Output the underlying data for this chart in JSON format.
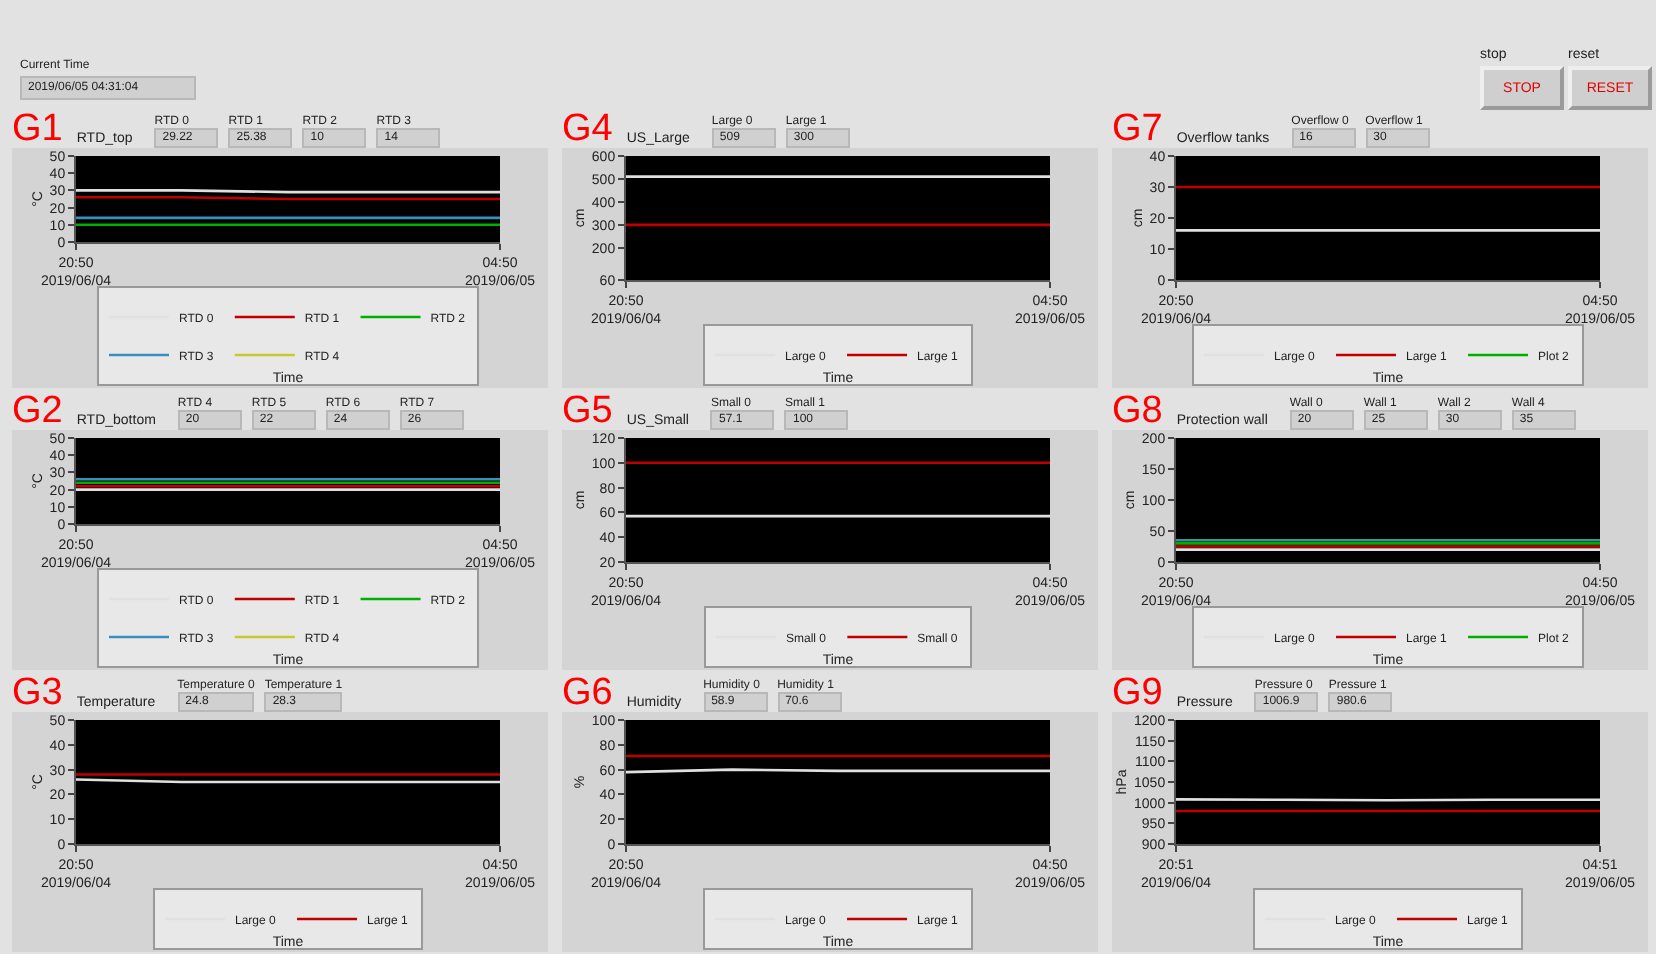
{
  "chart_data": [
    {
      "type": "other",
      "annotations": [
        "Current Time",
        "2019/06/05 04:31:04",
        "stop",
        "STOP",
        "reset",
        "RESET"
      ]
    },
    {
      "type": "line",
      "title": "RTD_top",
      "xlabel": "Time",
      "ylabel": "°C",
      "legend": "bottom",
      "annotations": [
        "G1",
        "RTD 0",
        "29.22",
        "RTD 1",
        "25.38",
        "RTD 2",
        "10",
        "RTD 3",
        "14"
      ],
      "x": [
        "2019-06-04T20:50",
        "2019-06-04T22:50",
        "2019-06-05T00:50",
        "2019-06-05T02:50",
        "2019-06-05T04:50"
      ],
      "xlim": [
        "2019-06-04T20:50",
        "2019-06-05T04:50"
      ],
      "xticks": [
        {
          "value": "2019-06-04T20:50",
          "label": "20:50\n2019/06/04"
        },
        {
          "value": "2019-06-05T04:50",
          "label": "04:50\n2019/06/05"
        }
      ],
      "ylim": [
        0,
        50
      ],
      "yticks": [
        0,
        10,
        20,
        30,
        40,
        50
      ],
      "series": [
        {
          "name": "RTD 0",
          "color": "#e0e0e0",
          "values": [
            30,
            30,
            29,
            29,
            29
          ]
        },
        {
          "name": "RTD 1",
          "color": "#c00000",
          "values": [
            26,
            26,
            25,
            25,
            25
          ]
        },
        {
          "name": "RTD 2",
          "color": "#00b000",
          "values": [
            10,
            10,
            10,
            10,
            10
          ]
        },
        {
          "name": "RTD 3",
          "color": "#3a8fc0",
          "values": [
            14,
            14,
            14,
            14,
            14
          ]
        },
        {
          "name": "RTD 4",
          "color": "#c8c832",
          "values": [
            null,
            null,
            null,
            null,
            null
          ]
        }
      ]
    },
    {
      "type": "line",
      "title": "US_Large",
      "xlabel": "Time",
      "ylabel": "cm",
      "legend": "bottom",
      "annotations": [
        "G4",
        "Large 0",
        "509",
        "Large 1",
        "300"
      ],
      "x": [
        "2019-06-04T20:50",
        "2019-06-04T22:50",
        "2019-06-05T00:50",
        "2019-06-05T02:50",
        "2019-06-05T04:50"
      ],
      "xlim": [
        "2019-06-04T20:50",
        "2019-06-05T04:50"
      ],
      "xticks": [
        {
          "value": "2019-06-04T20:50",
          "label": "20:50\n2019/06/04"
        },
        {
          "value": "2019-06-05T04:50",
          "label": "04:50\n2019/06/05"
        }
      ],
      "ylim": [
        60,
        600
      ],
      "yticks": [
        60,
        200,
        300,
        400,
        500,
        600
      ],
      "series": [
        {
          "name": "Large 0",
          "color": "#e0e0e0",
          "values": [
            510,
            510,
            510,
            510,
            510
          ]
        },
        {
          "name": "Large 1",
          "color": "#c00000",
          "values": [
            300,
            300,
            300,
            300,
            300
          ]
        }
      ]
    },
    {
      "type": "line",
      "title": "Overflow tanks",
      "xlabel": "Time",
      "ylabel": "cm",
      "legend": "bottom",
      "annotations": [
        "G7",
        "Overflow 0",
        "16",
        "Overflow 1",
        "30"
      ],
      "x": [
        "2019-06-04T20:50",
        "2019-06-04T22:50",
        "2019-06-05T00:50",
        "2019-06-05T02:50",
        "2019-06-05T04:50"
      ],
      "xlim": [
        "2019-06-04T20:50",
        "2019-06-05T04:50"
      ],
      "xticks": [
        {
          "value": "2019-06-04T20:50",
          "label": "20:50\n2019/06/04"
        },
        {
          "value": "2019-06-05T04:50",
          "label": "04:50\n2019/06/05"
        }
      ],
      "ylim": [
        0,
        40
      ],
      "yticks": [
        0,
        10,
        20,
        30,
        40
      ],
      "series": [
        {
          "name": "Large 0",
          "color": "#e0e0e0",
          "values": [
            16,
            16,
            16,
            16,
            16
          ]
        },
        {
          "name": "Large 1",
          "color": "#c00000",
          "values": [
            30,
            30,
            30,
            30,
            30
          ]
        },
        {
          "name": "Plot 2",
          "color": "#00b000",
          "values": [
            null,
            null,
            null,
            null,
            null
          ]
        }
      ]
    },
    {
      "type": "line",
      "title": "RTD_bottom",
      "xlabel": "Time",
      "ylabel": "°C",
      "legend": "bottom",
      "annotations": [
        "G2",
        "RTD 4",
        "20",
        "RTD 5",
        "22",
        "RTD 6",
        "24",
        "RTD 7",
        "26"
      ],
      "x": [
        "2019-06-04T20:50",
        "2019-06-04T22:50",
        "2019-06-05T00:50",
        "2019-06-05T02:50",
        "2019-06-05T04:50"
      ],
      "xlim": [
        "2019-06-04T20:50",
        "2019-06-05T04:50"
      ],
      "xticks": [
        {
          "value": "2019-06-04T20:50",
          "label": "20:50\n2019/06/04"
        },
        {
          "value": "2019-06-05T04:50",
          "label": "04:50\n2019/06/05"
        }
      ],
      "ylim": [
        0,
        50
      ],
      "yticks": [
        0,
        10,
        20,
        30,
        40,
        50
      ],
      "series": [
        {
          "name": "RTD 0",
          "color": "#e0e0e0",
          "values": [
            20,
            20,
            20,
            20,
            20
          ]
        },
        {
          "name": "RTD 1",
          "color": "#c00000",
          "values": [
            22,
            22,
            22,
            22,
            22
          ]
        },
        {
          "name": "RTD 2",
          "color": "#00b000",
          "values": [
            24,
            24,
            24,
            24,
            24
          ]
        },
        {
          "name": "RTD 3",
          "color": "#3a8fc0",
          "values": [
            26,
            26,
            26,
            26,
            26
          ]
        },
        {
          "name": "RTD 4",
          "color": "#c8c832",
          "values": [
            null,
            null,
            null,
            null,
            null
          ]
        }
      ]
    },
    {
      "type": "line",
      "title": "US_Small",
      "xlabel": "Time",
      "ylabel": "cm",
      "legend": "bottom",
      "annotations": [
        "G5",
        "Small 0",
        "57.1",
        "Small 1",
        "100"
      ],
      "x": [
        "2019-06-04T20:50",
        "2019-06-04T22:50",
        "2019-06-05T00:50",
        "2019-06-05T02:50",
        "2019-06-05T04:50"
      ],
      "xlim": [
        "2019-06-04T20:50",
        "2019-06-05T04:50"
      ],
      "xticks": [
        {
          "value": "2019-06-04T20:50",
          "label": "20:50\n2019/06/04"
        },
        {
          "value": "2019-06-05T04:50",
          "label": "04:50\n2019/06/05"
        }
      ],
      "ylim": [
        20,
        120
      ],
      "yticks": [
        20,
        40,
        60,
        80,
        100,
        120
      ],
      "series": [
        {
          "name": "Small 0",
          "color": "#e0e0e0",
          "values": [
            57,
            57,
            57,
            57,
            57
          ]
        },
        {
          "name": "Small 0",
          "color": "#c00000",
          "values": [
            100,
            100,
            100,
            100,
            100
          ]
        }
      ]
    },
    {
      "type": "line",
      "title": "Protection wall",
      "xlabel": "Time",
      "ylabel": "cm",
      "legend": "bottom",
      "annotations": [
        "G8",
        "Wall 0",
        "20",
        "Wall 1",
        "25",
        "Wall 2",
        "30",
        "Wall 4",
        "35"
      ],
      "x": [
        "2019-06-04T20:50",
        "2019-06-04T22:50",
        "2019-06-05T00:50",
        "2019-06-05T02:50",
        "2019-06-05T04:50"
      ],
      "xlim": [
        "2019-06-04T20:50",
        "2019-06-05T04:50"
      ],
      "xticks": [
        {
          "value": "2019-06-04T20:50",
          "label": "20:50\n2019/06/04"
        },
        {
          "value": "2019-06-05T04:50",
          "label": "04:50\n2019/06/05"
        }
      ],
      "ylim": [
        0,
        200
      ],
      "yticks": [
        0,
        50,
        100,
        150,
        200
      ],
      "series": [
        {
          "name": "Large 0",
          "color": "#e0e0e0",
          "values": [
            20,
            20,
            20,
            20,
            20
          ]
        },
        {
          "name": "Large 1",
          "color": "#c00000",
          "values": [
            25,
            25,
            25,
            25,
            25
          ]
        },
        {
          "name": "Plot 2",
          "color": "#00b000",
          "values": [
            30,
            30,
            30,
            30,
            30
          ]
        },
        {
          "color": "#2a9a9a",
          "values": [
            35,
            35,
            35,
            35,
            35
          ]
        }
      ]
    },
    {
      "type": "line",
      "title": "Temperature",
      "xlabel": "Time",
      "ylabel": "°C",
      "legend": "bottom",
      "annotations": [
        "G3",
        "Temperature 0",
        "24.8",
        "Temperature 1",
        "28.3"
      ],
      "x": [
        "2019-06-04T20:50",
        "2019-06-04T22:50",
        "2019-06-05T00:50",
        "2019-06-05T02:50",
        "2019-06-05T04:50"
      ],
      "xlim": [
        "2019-06-04T20:50",
        "2019-06-05T04:50"
      ],
      "xticks": [
        {
          "value": "2019-06-04T20:50",
          "label": "20:50\n2019/06/04"
        },
        {
          "value": "2019-06-05T04:50",
          "label": "04:50\n2019/06/05"
        }
      ],
      "ylim": [
        0,
        50
      ],
      "yticks": [
        0,
        10,
        20,
        30,
        40,
        50
      ],
      "series": [
        {
          "name": "Large 0",
          "color": "#e0e0e0",
          "values": [
            26,
            25,
            25,
            25,
            25
          ]
        },
        {
          "name": "Large 1",
          "color": "#c00000",
          "values": [
            28,
            28,
            28,
            28,
            28
          ]
        }
      ]
    },
    {
      "type": "line",
      "title": "Humidity",
      "xlabel": "Time",
      "ylabel": "%",
      "legend": "bottom",
      "annotations": [
        "G6",
        "Humidity 0",
        "58.9",
        "Humidity 1",
        "70.6"
      ],
      "x": [
        "2019-06-04T20:50",
        "2019-06-04T22:50",
        "2019-06-05T00:50",
        "2019-06-05T02:50",
        "2019-06-05T04:50"
      ],
      "xlim": [
        "2019-06-04T20:50",
        "2019-06-05T04:50"
      ],
      "xticks": [
        {
          "value": "2019-06-04T20:50",
          "label": "20:50\n2019/06/04"
        },
        {
          "value": "2019-06-05T04:50",
          "label": "04:50\n2019/06/05"
        }
      ],
      "ylim": [
        0,
        100
      ],
      "yticks": [
        0,
        20,
        40,
        60,
        80,
        100
      ],
      "series": [
        {
          "name": "Large 0",
          "color": "#e0e0e0",
          "values": [
            58,
            60,
            59,
            59,
            59
          ]
        },
        {
          "name": "Large 1",
          "color": "#c00000",
          "values": [
            71,
            71,
            71,
            71,
            71
          ]
        }
      ]
    },
    {
      "type": "line",
      "title": "Pressure",
      "xlabel": "Time",
      "ylabel": "hPa",
      "legend": "bottom",
      "annotations": [
        "G9",
        "Pressure 0",
        "1006.9",
        "Pressure 1",
        "980.6"
      ],
      "x": [
        "2019-06-04T20:51",
        "2019-06-04T22:51",
        "2019-06-05T00:51",
        "2019-06-05T02:51",
        "2019-06-05T04:51"
      ],
      "xlim": [
        "2019-06-04T20:51",
        "2019-06-05T04:51"
      ],
      "xticks": [
        {
          "value": "2019-06-04T20:51",
          "label": "20:51\n2019/06/04"
        },
        {
          "value": "2019-06-05T04:51",
          "label": "04:51\n2019/06/05"
        }
      ],
      "ylim": [
        900,
        1200
      ],
      "yticks": [
        900,
        950,
        1000,
        1050,
        1100,
        1150,
        1200
      ],
      "series": [
        {
          "name": "Large 0",
          "color": "#e0e0e0",
          "values": [
            1008,
            1007,
            1006,
            1007,
            1007
          ]
        },
        {
          "name": "Large 1",
          "color": "#c00000",
          "values": [
            980,
            980,
            980,
            980,
            980
          ]
        }
      ]
    }
  ]
}
